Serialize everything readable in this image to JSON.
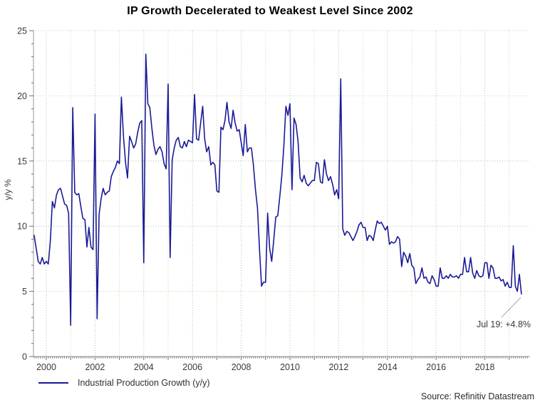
{
  "title": "IP Growth Decelerated to Weakest Level Since 2002",
  "source": "Source: Refinitiv Datastream",
  "legend": {
    "label": "Industrial Production Growth (y/y)"
  },
  "annotation": {
    "text": "Jul 19: +4.8%",
    "points_to": "2019-07",
    "value": 4.8
  },
  "y_axis": {
    "title": "y/y %",
    "tick_labels": [
      "0",
      "5",
      "10",
      "15",
      "20",
      "25"
    ],
    "range": [
      0,
      25
    ]
  },
  "x_axis": {
    "tick_labels": [
      "2000",
      "2002",
      "2004",
      "2006",
      "2008",
      "2010",
      "2012",
      "2014",
      "2016",
      "2018"
    ],
    "minor_ticks": "monthly",
    "gridlines": "yearly-dotted"
  },
  "colors": {
    "line": "#1a1a96",
    "grid_green": "#9dc49d",
    "grid_tan": "#dcc79e",
    "axis": "#9a9a9a",
    "tick": "#6f6f6f",
    "tick_text": "#3a3a3a",
    "callout": "#a8a8a8",
    "title_text": "#000000"
  },
  "chart_data": {
    "type": "line",
    "title": "IP Growth Decelerated to Weakest Level Since 2002",
    "xlabel": "",
    "ylabel": "y/y %",
    "ylim": [
      0,
      25
    ],
    "xlim_years": [
      1999.5,
      2019.85
    ],
    "grid": "dotted",
    "legend_position": "bottom-left",
    "series": [
      {
        "name": "Industrial Production Growth (y/y)",
        "start": "1999-07",
        "end": "2019-07",
        "frequency": "monthly",
        "unit": "percent y/y",
        "values": [
          9.3,
          8.3,
          7.3,
          7.1,
          7.6,
          7.1,
          7.3,
          7.1,
          8.9,
          11.9,
          11.4,
          12.4,
          12.8,
          12.9,
          12.3,
          11.7,
          11.6,
          11.0,
          2.4,
          19.1,
          12.6,
          12.4,
          12.5,
          11.5,
          10.6,
          10.5,
          8.4,
          9.9,
          8.4,
          8.2,
          18.6,
          2.9,
          10.9,
          12.1,
          12.9,
          12.4,
          12.6,
          12.7,
          13.8,
          14.2,
          14.5,
          15.0,
          14.8,
          19.9,
          16.9,
          14.9,
          13.7,
          16.9,
          16.5,
          16.0,
          16.3,
          17.2,
          17.9,
          18.1,
          7.2,
          23.2,
          19.4,
          19.1,
          17.5,
          16.2,
          15.5,
          15.9,
          16.1,
          15.7,
          14.8,
          14.4,
          20.9,
          7.6,
          15.1,
          16.0,
          16.6,
          16.8,
          16.1,
          16.0,
          16.5,
          16.1,
          16.6,
          16.5,
          16.4,
          20.1,
          16.7,
          16.6,
          17.9,
          19.2,
          16.7,
          15.7,
          16.1,
          14.7,
          14.9,
          14.7,
          12.7,
          12.6,
          17.6,
          17.4,
          18.1,
          19.5,
          18.0,
          17.5,
          18.9,
          17.9,
          17.3,
          17.4,
          16.4,
          15.4,
          17.8,
          15.7,
          16.0,
          16.0,
          14.7,
          12.8,
          11.4,
          8.2,
          5.4,
          5.7,
          5.7,
          11.0,
          8.3,
          7.3,
          8.9,
          10.7,
          10.8,
          12.3,
          13.9,
          16.1,
          19.2,
          18.5,
          19.4,
          12.8,
          18.3,
          17.8,
          16.5,
          13.7,
          13.4,
          13.9,
          13.3,
          13.1,
          13.3,
          13.5,
          13.5,
          14.9,
          14.8,
          13.4,
          13.3,
          15.1,
          14.0,
          13.5,
          13.8,
          13.2,
          12.4,
          12.8,
          12.1,
          21.3,
          9.8,
          9.3,
          9.6,
          9.5,
          9.2,
          8.9,
          9.2,
          9.6,
          10.1,
          10.3,
          9.9,
          9.9,
          8.9,
          9.3,
          9.2,
          8.9,
          9.7,
          10.4,
          10.2,
          10.3,
          10.0,
          9.7,
          10.0,
          8.6,
          8.8,
          8.7,
          8.8,
          9.2,
          9.0,
          6.9,
          8.0,
          7.7,
          7.2,
          7.9,
          7.0,
          6.8,
          5.6,
          5.9,
          6.1,
          6.8,
          6.0,
          6.1,
          5.7,
          5.6,
          6.2,
          5.9,
          5.4,
          5.4,
          6.8,
          6.0,
          6.0,
          6.2,
          6.0,
          6.3,
          6.1,
          6.1,
          6.2,
          6.0,
          6.3,
          6.3,
          7.6,
          6.5,
          6.5,
          7.6,
          6.4,
          6.0,
          6.6,
          6.2,
          6.1,
          6.2,
          7.2,
          7.2,
          6.0,
          7.0,
          6.8,
          6.0,
          6.0,
          6.1,
          5.8,
          5.9,
          5.4,
          5.7,
          5.3,
          5.3,
          8.5,
          5.4,
          5.0,
          6.3,
          4.8
        ]
      }
    ],
    "annotations": [
      {
        "text": "Jul 19: +4.8%",
        "x": "2019-07",
        "y": 4.8
      }
    ]
  }
}
